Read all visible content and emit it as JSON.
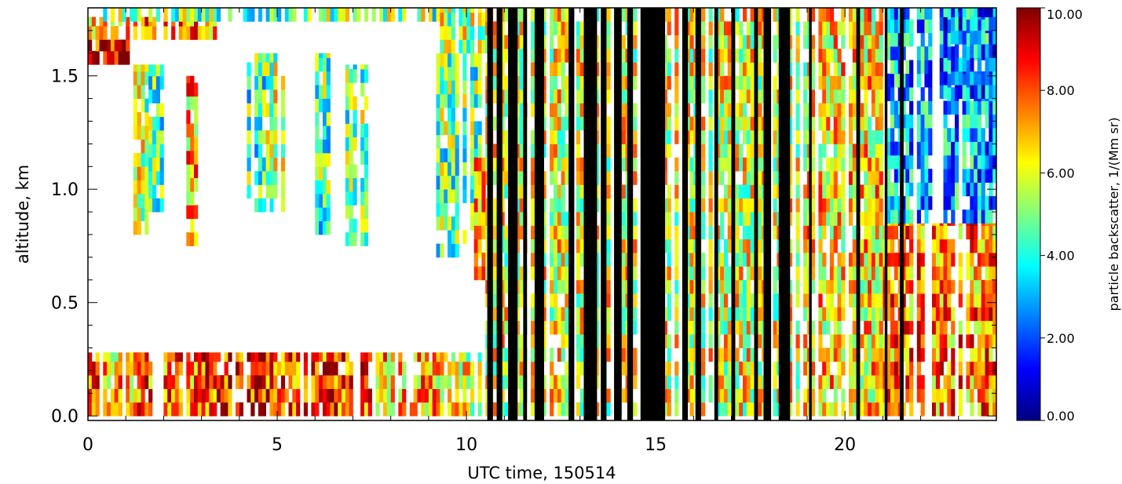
{
  "chart_data": {
    "type": "heatmap",
    "xlabel": "UTC time, 150514",
    "ylabel": "altitude, km",
    "xlim": [
      0,
      24
    ],
    "ylim": [
      -0.02,
      1.8
    ],
    "x_ticks": [
      "0",
      "5",
      "10",
      "15",
      "20"
    ],
    "x_tick_values": [
      0,
      5,
      10,
      15,
      20
    ],
    "y_ticks": [
      "0.0",
      "0.5",
      "1.0",
      "1.5"
    ],
    "y_tick_values": [
      0.0,
      0.5,
      1.0,
      1.5
    ],
    "colorbar": {
      "label": "particle backscatter, 1/(Mm sr)",
      "range": [
        0,
        10
      ],
      "ticks": [
        "0.00",
        "2.00",
        "4.00",
        "6.00",
        "8.00",
        "10.00"
      ],
      "tick_values": [
        0,
        2,
        4,
        6,
        8,
        10
      ],
      "colormap": [
        "#00007f",
        "#0000ff",
        "#007fff",
        "#00ffff",
        "#7fff7f",
        "#ffff00",
        "#ff7f00",
        "#ff0000",
        "#7f0000"
      ]
    },
    "cloud_mask_color": "#000000",
    "time_bin_h": 0.1,
    "alt_bin_km": 0.06,
    "regions": [
      {
        "t0": 0.0,
        "t1": 0.4,
        "z0": 0.0,
        "z1": 0.28,
        "value": 8.0
      },
      {
        "t0": 0.4,
        "t1": 1.3,
        "z0": 0.0,
        "z1": 0.28,
        "value": 7.0
      },
      {
        "t0": 1.3,
        "t1": 2.0,
        "z0": 0.0,
        "z1": 0.28,
        "value": 8.0
      },
      {
        "t0": 2.0,
        "t1": 3.4,
        "z0": 0.0,
        "z1": 0.28,
        "value": 7.5
      },
      {
        "t0": 3.0,
        "t1": 5.2,
        "z0": 0.0,
        "z1": 0.28,
        "value": 8.5
      },
      {
        "t0": 5.2,
        "t1": 7.6,
        "z0": 0.0,
        "z1": 0.28,
        "value": 8.0
      },
      {
        "t0": 7.6,
        "t1": 9.6,
        "z0": 0.0,
        "z1": 0.28,
        "value": 7.0
      },
      {
        "t0": 9.6,
        "t1": 10.4,
        "z0": 0.0,
        "z1": 0.28,
        "value": 6.0
      },
      {
        "t0": 0.0,
        "t1": 1.2,
        "z0": 1.55,
        "z1": 1.66,
        "value": 9.0
      },
      {
        "t0": 0.0,
        "t1": 3.4,
        "z0": 1.66,
        "z1": 1.76,
        "value": 7.5
      },
      {
        "t0": 0.0,
        "t1": 9.4,
        "z0": 1.74,
        "z1": 1.8,
        "value": 5.0
      },
      {
        "t0": 1.2,
        "t1": 1.6,
        "z0": 0.8,
        "z1": 1.55,
        "value": 5.5
      },
      {
        "t0": 1.6,
        "t1": 2.0,
        "z0": 0.9,
        "z1": 1.55,
        "value": 4.5
      },
      {
        "t0": 2.6,
        "t1": 2.9,
        "z0": 0.75,
        "z1": 1.5,
        "value": 7.0
      },
      {
        "t0": 4.2,
        "t1": 4.7,
        "z0": 0.9,
        "z1": 1.6,
        "value": 4.5
      },
      {
        "t0": 4.7,
        "t1": 5.2,
        "z0": 0.9,
        "z1": 1.6,
        "value": 5.5
      },
      {
        "t0": 6.0,
        "t1": 6.4,
        "z0": 0.8,
        "z1": 1.6,
        "value": 4.5
      },
      {
        "t0": 6.6,
        "t1": 7.4,
        "z0": 0.75,
        "z1": 1.55,
        "value": 5.0
      },
      {
        "t0": 9.2,
        "t1": 10.4,
        "z0": 0.7,
        "z1": 1.6,
        "value": 4.8
      },
      {
        "t0": 10.2,
        "t1": 10.5,
        "z0": 0.6,
        "z1": 1.2,
        "value": 6.5
      },
      {
        "t0": 9.3,
        "t1": 10.6,
        "z0": 1.6,
        "z1": 1.8,
        "value": 5.5
      },
      {
        "t0": 10.5,
        "t1": 19.0,
        "z0": 0.0,
        "z1": 1.8,
        "value": 6.0
      },
      {
        "t0": 19.0,
        "t1": 21.0,
        "z0": 0.0,
        "z1": 1.8,
        "value": 6.5
      },
      {
        "t0": 21.0,
        "t1": 24.0,
        "z0": 0.0,
        "z1": 0.85,
        "value": 7.5
      },
      {
        "t0": 21.0,
        "t1": 24.0,
        "z0": 0.85,
        "z1": 1.8,
        "value": 3.0
      },
      {
        "t0": 22.5,
        "t1": 24.0,
        "z0": 1.4,
        "z1": 1.8,
        "value": 2.5
      }
    ],
    "black_spans": [
      [
        10.55,
        10.7
      ],
      [
        10.8,
        10.95
      ],
      [
        11.1,
        11.35
      ],
      [
        11.5,
        11.6
      ],
      [
        11.8,
        12.05
      ],
      [
        12.7,
        12.85
      ],
      [
        13.1,
        13.45
      ],
      [
        13.55,
        13.7
      ],
      [
        13.9,
        14.1
      ],
      [
        14.25,
        14.4
      ],
      [
        14.6,
        15.25
      ],
      [
        15.7,
        15.85
      ],
      [
        16.05,
        16.2
      ],
      [
        16.55,
        16.65
      ],
      [
        17.0,
        17.1
      ],
      [
        17.6,
        17.7
      ],
      [
        17.85,
        18.05
      ],
      [
        18.25,
        18.55
      ],
      [
        19.05,
        19.12
      ],
      [
        20.3,
        20.4
      ],
      [
        21.05,
        21.12
      ],
      [
        21.45,
        21.55
      ]
    ]
  }
}
